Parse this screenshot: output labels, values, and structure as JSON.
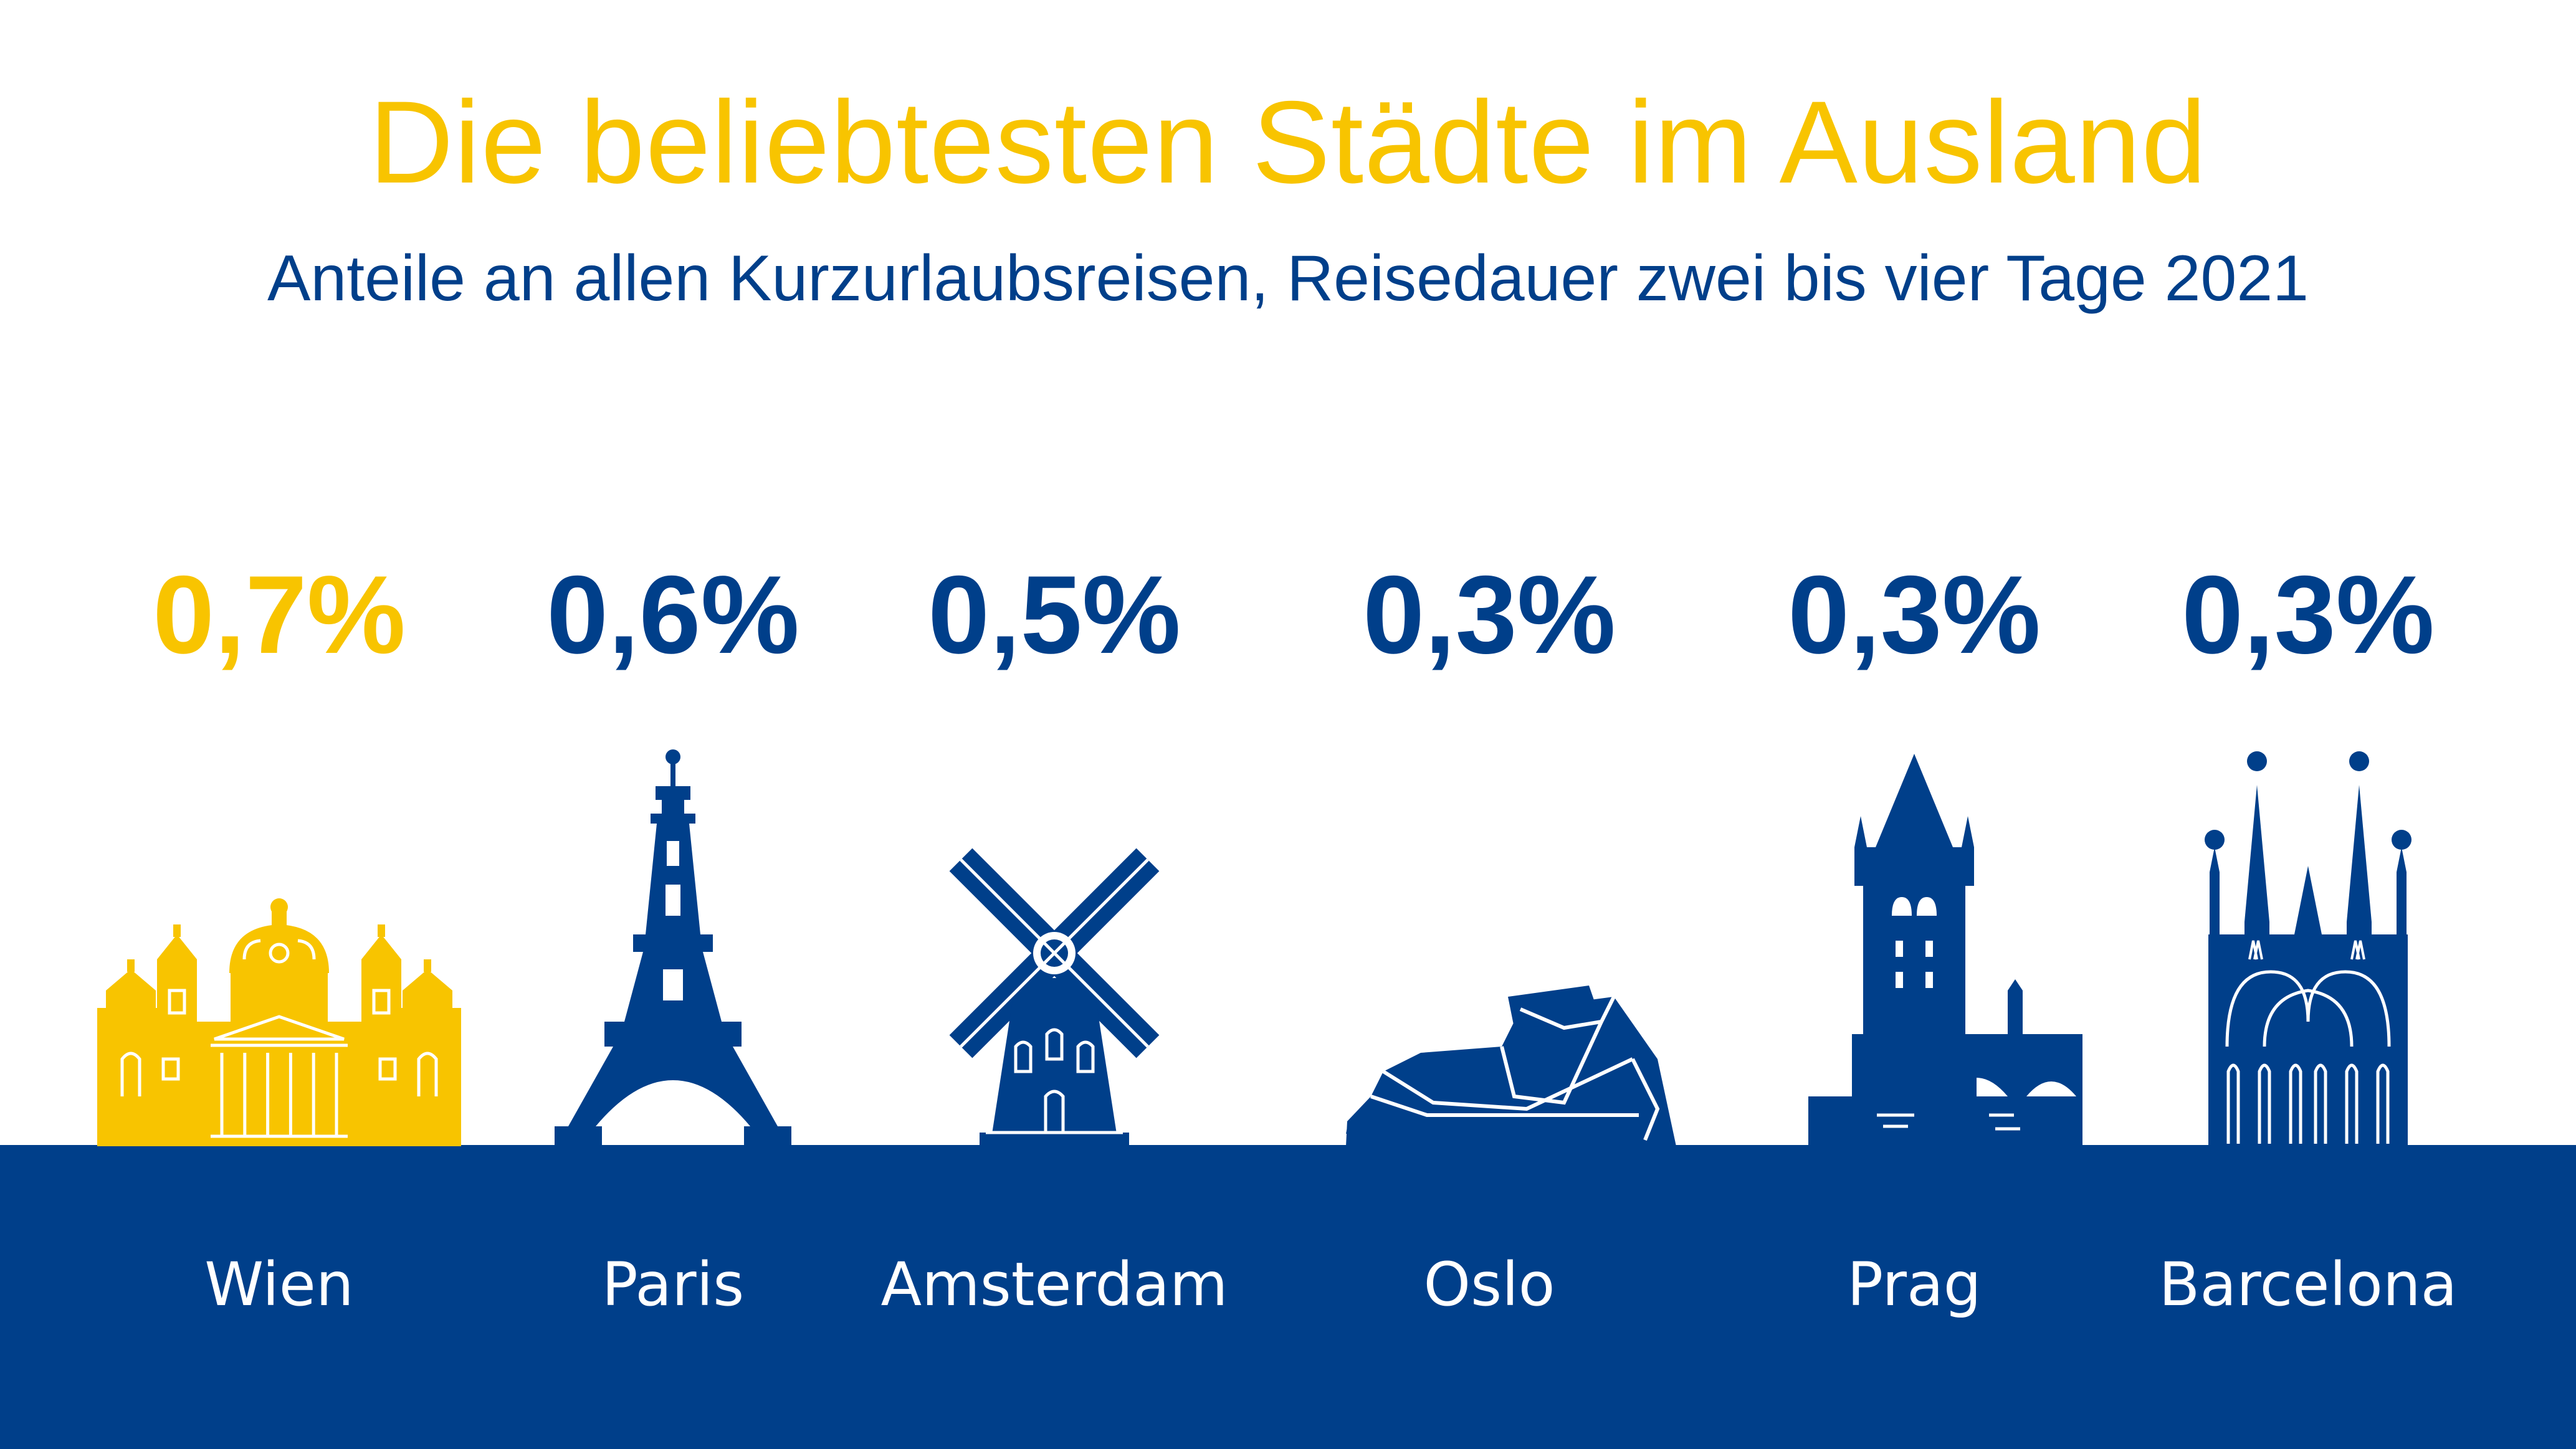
{
  "colors": {
    "highlight": "#f8c400",
    "primary": "#003f8a",
    "background": "#ffffff",
    "city_label": "#ffffff"
  },
  "chart_data": {
    "type": "bar",
    "title": "Die beliebtesten Städte im Ausland",
    "subtitle": "Anteile an allen Kurzurlaubsreisen, Reisedauer zwei bis vier Tage 2021",
    "unit": "%",
    "categories": [
      "Wien",
      "Paris",
      "Amsterdam",
      "Oslo",
      "Prag",
      "Barcelona"
    ],
    "values": [
      0.7,
      0.6,
      0.5,
      0.3,
      0.3,
      0.3
    ],
    "value_labels": [
      "0,7%",
      "0,6%",
      "0,5%",
      "0,3%",
      "0,3%",
      "0,3%"
    ],
    "highlighted_category": "Wien",
    "icons": [
      "vienna-palace-icon",
      "eiffel-tower-icon",
      "windmill-icon",
      "oslo-opera-icon",
      "prague-tower-bridge-icon",
      "sagrada-familia-icon"
    ]
  }
}
